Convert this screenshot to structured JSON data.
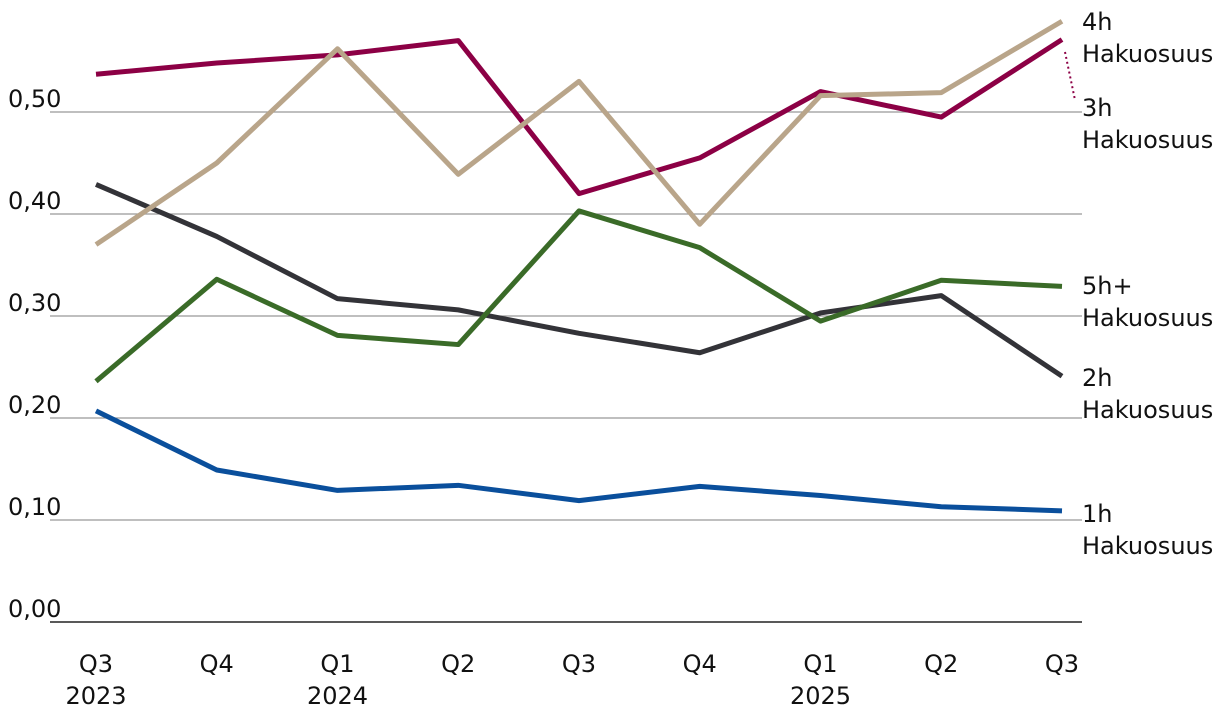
{
  "chart_data": {
    "type": "line",
    "categories": [
      "Q3\n2023",
      "Q4",
      "Q1\n2024",
      "Q2",
      "Q3",
      "Q4",
      "Q1\n2025",
      "Q2",
      "Q3"
    ],
    "series": [
      {
        "name": "1h\nHakuosuus",
        "color": "#0a4f9c",
        "values": [
          0.207,
          0.149,
          0.129,
          0.134,
          0.119,
          0.133,
          0.124,
          0.113,
          0.109
        ]
      },
      {
        "name": "2h\nHakuosuus",
        "color": "#333338",
        "values": [
          0.429,
          0.378,
          0.317,
          0.306,
          0.283,
          0.264,
          0.303,
          0.32,
          0.241
        ]
      },
      {
        "name": "3h\nHakuosuus",
        "color": "#8c0045",
        "values": [
          0.537,
          0.548,
          0.556,
          0.57,
          0.42,
          0.455,
          0.52,
          0.495,
          0.571
        ]
      },
      {
        "name": "4h\nHakuosuus",
        "color": "#b9a58a",
        "values": [
          0.37,
          0.45,
          0.562,
          0.439,
          0.53,
          0.39,
          0.516,
          0.519,
          0.589
        ]
      },
      {
        "name": "5h+\nHakuosuus",
        "color": "#3a6b28",
        "values": [
          0.236,
          0.336,
          0.281,
          0.272,
          0.403,
          0.367,
          0.295,
          0.335,
          0.329
        ]
      }
    ],
    "ylim": [
      0,
      0.6
    ],
    "yticks": [
      {
        "value": 0,
        "label": "0,00"
      },
      {
        "value": 0.1,
        "label": "0,10"
      },
      {
        "value": 0.2,
        "label": "0,20"
      },
      {
        "value": 0.3,
        "label": "0,30"
      },
      {
        "value": 0.4,
        "label": "0,40"
      },
      {
        "value": 0.5,
        "label": "0,50"
      }
    ],
    "grid": true
  }
}
